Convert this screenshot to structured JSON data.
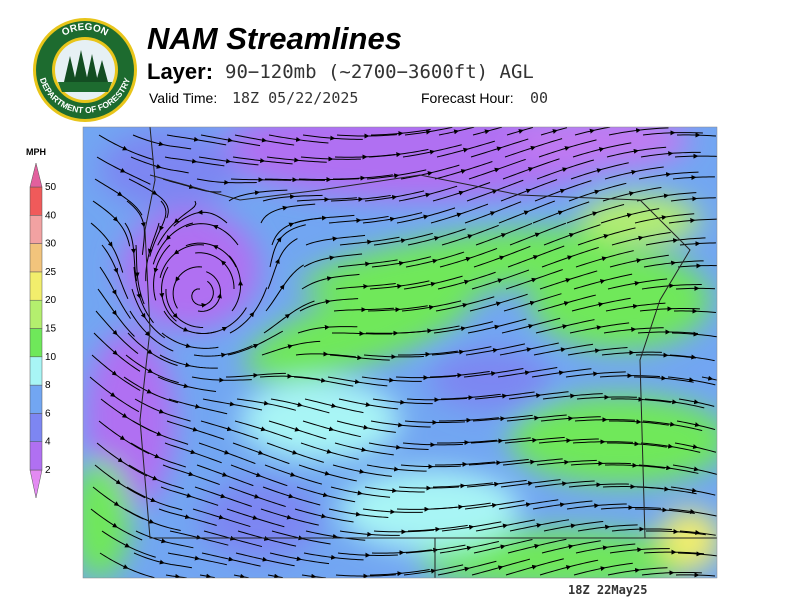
{
  "header": {
    "title": "NAM Streamlines",
    "layer_label": "Layer:",
    "layer_value": "90−120mb (~2700−3600ft) AGL",
    "valid_time_label": "Valid Time:",
    "valid_time": "18Z 05/22/2025",
    "forecast_hour_label": "Forecast Hour:",
    "forecast_hour": "00"
  },
  "logo": {
    "top_text": "OREGON",
    "bottom_text": "DEPARTMENT OF FORESTRY"
  },
  "legend": {
    "unit": "MPH",
    "ticks": [
      2,
      4,
      6,
      8,
      10,
      15,
      20,
      25,
      30,
      40,
      50
    ],
    "colors": [
      "#e38af2",
      "#b070f2",
      "#7d86f2",
      "#72a6f2",
      "#a8f5f5",
      "#6fe85a",
      "#b4ef6e",
      "#f2ee6c",
      "#f2c47c",
      "#f2a2a2",
      "#f05a5a",
      "#e2609e"
    ]
  },
  "footer": {
    "timestamp": "18Z 22May25"
  }
}
